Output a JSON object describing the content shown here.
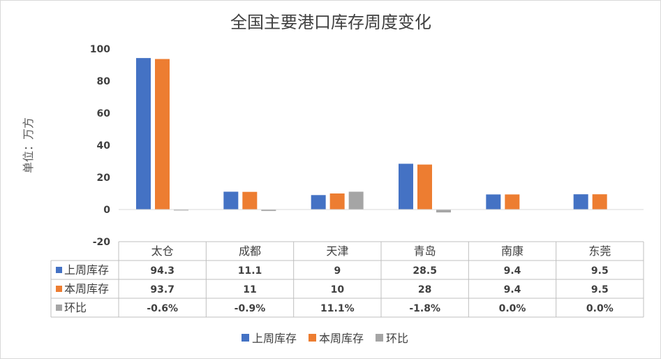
{
  "chart_data": {
    "type": "bar",
    "title": "全国主要港口库存周度变化",
    "ylabel": "单位：万方",
    "xlabel": "",
    "ylim": [
      -20,
      100
    ],
    "yticks": [
      100,
      80,
      60,
      40,
      20,
      0,
      -20
    ],
    "grid": false,
    "legend_position": "bottom",
    "data_table": true,
    "categories": [
      "太仓",
      "成都",
      "天津",
      "青岛",
      "南康",
      "东莞"
    ],
    "series": [
      {
        "name": "上周库存",
        "color": "#4472C4",
        "values": [
          94.3,
          11.1,
          9,
          28.5,
          9.4,
          9.5
        ],
        "labels": [
          "94.3",
          "11.1",
          "9",
          "28.5",
          "9.4",
          "9.5"
        ]
      },
      {
        "name": "本周库存",
        "color": "#ED7D31",
        "values": [
          93.7,
          11,
          10,
          28,
          9.4,
          9.5
        ],
        "labels": [
          "93.7",
          "11",
          "10",
          "28",
          "9.4",
          "9.5"
        ]
      },
      {
        "name": "环比",
        "color": "#A5A5A5",
        "values": [
          -0.6,
          -0.9,
          11.1,
          -1.8,
          0.0,
          0.0
        ],
        "labels": [
          "-0.6%",
          "-0.9%",
          "11.1%",
          "-1.8%",
          "0.0%",
          "0.0%"
        ]
      }
    ]
  }
}
